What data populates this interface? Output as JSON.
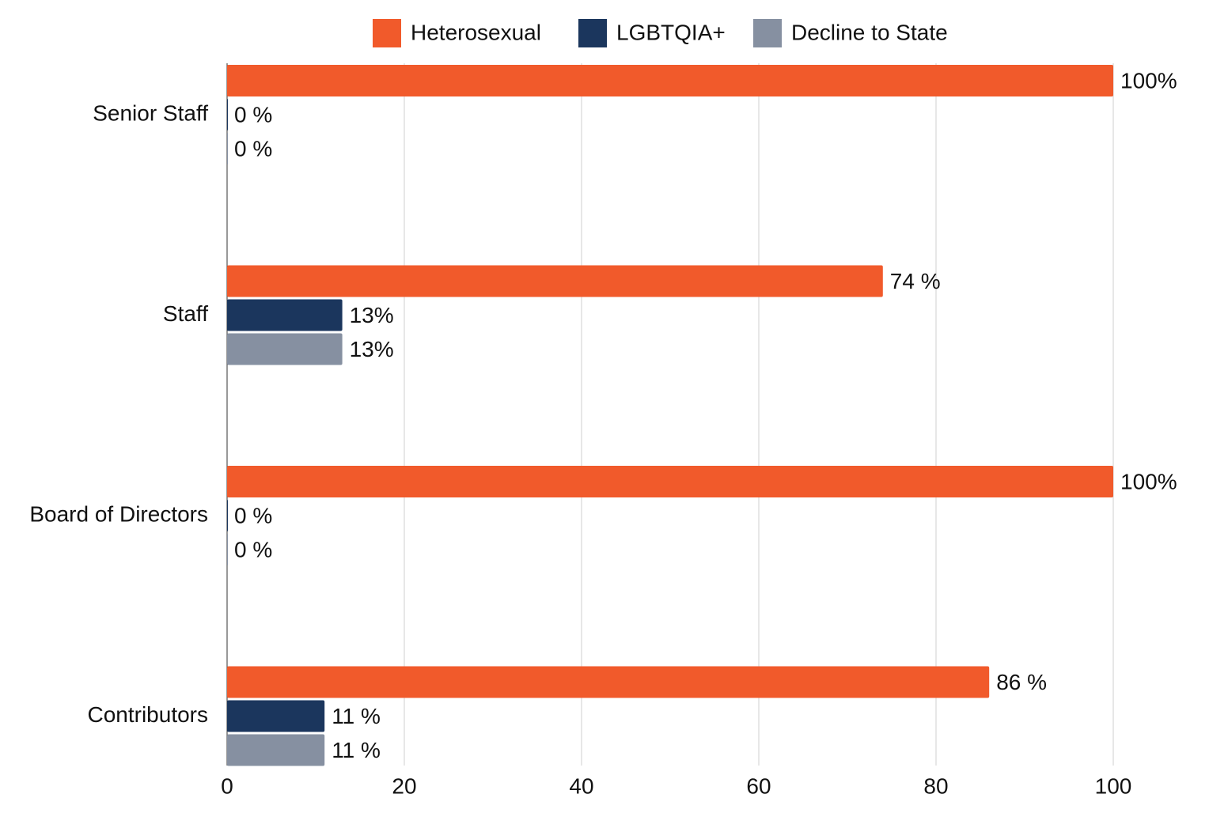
{
  "chart_data": {
    "type": "hbar",
    "categories": [
      "Senior Staff",
      "Staff",
      "Board of Directors",
      "Contributors"
    ],
    "series": [
      {
        "name": "Heterosexual",
        "color": "#f15a2b",
        "values": [
          100,
          74,
          100,
          86
        ],
        "value_labels": [
          "100%",
          "74 %",
          "100%",
          "86 %"
        ]
      },
      {
        "name": "LGBTQIA+",
        "color": "#1b365d",
        "values": [
          0,
          13,
          0,
          11
        ],
        "value_labels": [
          "0 %",
          "13%",
          "0 %",
          "11 %"
        ]
      },
      {
        "name": "Decline to State",
        "color": "#8690a1",
        "values": [
          0,
          13,
          0,
          11
        ],
        "value_labels": [
          "0 %",
          "13%",
          "0 %",
          "11 %"
        ]
      }
    ],
    "xlim": [
      0,
      100
    ],
    "xticks": [
      0,
      20,
      40,
      60,
      80,
      100
    ],
    "grid": true,
    "legend": "top"
  }
}
